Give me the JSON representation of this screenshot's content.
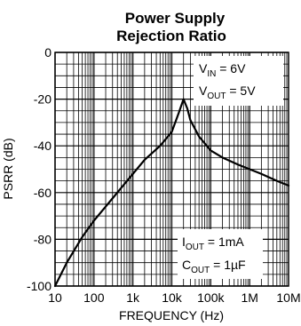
{
  "chart_data": {
    "type": "line",
    "title_lines": [
      "Power Supply",
      "Rejection Ratio"
    ],
    "xlabel": "FREQUENCY (Hz)",
    "ylabel": "PSRR (dB)",
    "x_scale": "log",
    "xlim": [
      10,
      10000000
    ],
    "ylim": [
      -100,
      0
    ],
    "x_ticks": [
      {
        "value": 10,
        "label": "10"
      },
      {
        "value": 100,
        "label": "100"
      },
      {
        "value": 1000,
        "label": "1k"
      },
      {
        "value": 10000,
        "label": "10k"
      },
      {
        "value": 100000,
        "label": "100k"
      },
      {
        "value": 1000000,
        "label": "1M"
      },
      {
        "value": 10000000,
        "label": "10M"
      }
    ],
    "y_ticks": [
      {
        "value": 0,
        "label": "0"
      },
      {
        "value": -20,
        "label": "-20"
      },
      {
        "value": -40,
        "label": "-40"
      },
      {
        "value": -60,
        "label": "-60"
      },
      {
        "value": -80,
        "label": "-80"
      },
      {
        "value": -100,
        "label": "-100"
      }
    ],
    "grid": true,
    "series": [
      {
        "x": [
          10,
          20,
          50,
          100,
          200,
          500,
          1000,
          2000,
          5000,
          10000,
          15000,
          20000,
          25000,
          30000,
          50000,
          100000,
          200000,
          500000,
          1000000,
          2000000,
          5000000,
          10000000
        ],
        "y": [
          -100,
          -90,
          -79,
          -72,
          -66,
          -58,
          -52,
          -46,
          -40,
          -34,
          -26,
          -20,
          -24,
          -29,
          -36,
          -42,
          -45,
          -48,
          -50,
          -52,
          -55,
          -57
        ]
      }
    ],
    "annotations": [
      {
        "text": "V",
        "sub": "IN",
        "suffix": " = 6V"
      },
      {
        "text": "V",
        "sub": "OUT",
        "suffix": " = 5V"
      },
      {
        "text": "I",
        "sub": "OUT",
        "suffix": " = 1mA"
      },
      {
        "text": "C",
        "sub": "OUT",
        "suffix": " = 1µF"
      }
    ]
  }
}
